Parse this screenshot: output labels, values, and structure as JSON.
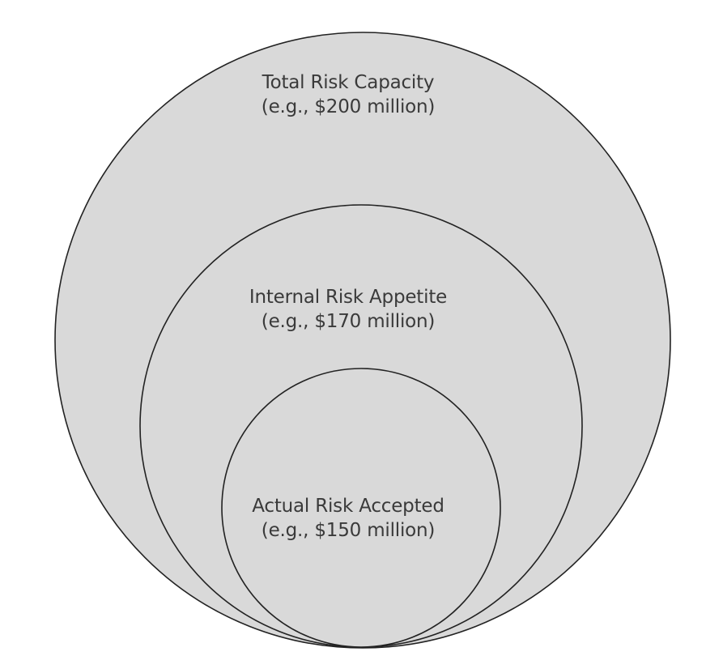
{
  "diagram": {
    "fill_color": "#d9d9d9",
    "stroke_color": "#222222",
    "circles": [
      {
        "name": "total-risk-capacity",
        "label": "Total Risk Capacity",
        "example": "(e.g., $200 million)"
      },
      {
        "name": "internal-risk-appetite",
        "label": "Internal Risk Appetite",
        "example": "(e.g., $170 million)"
      },
      {
        "name": "actual-risk-accepted",
        "label": "Actual Risk Accepted",
        "example": "(e.g., $150 million)"
      }
    ]
  }
}
